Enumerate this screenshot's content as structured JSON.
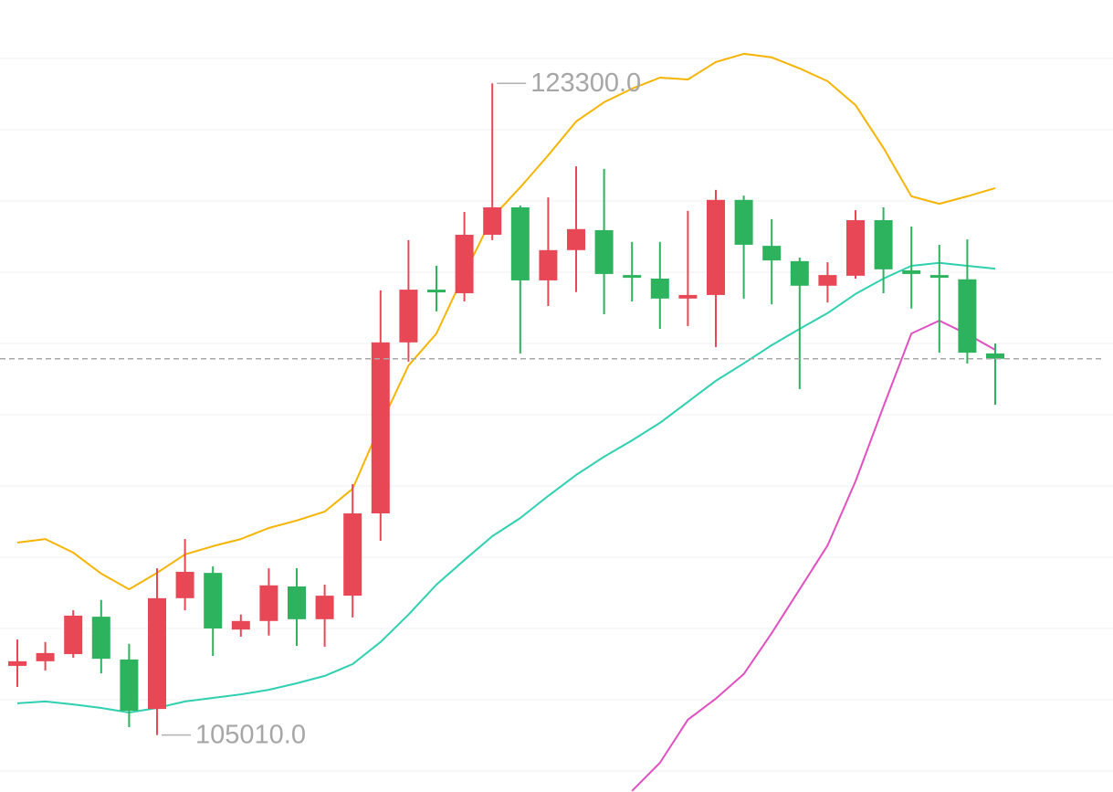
{
  "chart_data": {
    "type": "candlestick",
    "categories": [
      null,
      null,
      null,
      null,
      null,
      null,
      null,
      null,
      null,
      null,
      null,
      null,
      null,
      null,
      null,
      null,
      null,
      null,
      null,
      null,
      null,
      null,
      null,
      null,
      null,
      null,
      null,
      null,
      null,
      null,
      null,
      null,
      null,
      null,
      null,
      null
    ],
    "open": [
      106950,
      107080,
      107280,
      108330,
      107130,
      105740,
      108850,
      109560,
      107970,
      108210,
      109180,
      108260,
      108920,
      111230,
      116030,
      117510,
      117410,
      119050,
      119820,
      117770,
      118620,
      119180,
      117920,
      117820,
      117260,
      117360,
      120030,
      118740,
      118310,
      117620,
      117900,
      119460,
      118050,
      117920,
      117800,
      115720
    ],
    "high": [
      107690,
      107620,
      108510,
      108800,
      107570,
      109690,
      110510,
      109740,
      108390,
      109690,
      109690,
      109230,
      112050,
      117490,
      118900,
      118180,
      119690,
      123300,
      119870,
      120100,
      120970,
      120900,
      118850,
      118850,
      119720,
      120310,
      120150,
      119490,
      118410,
      118280,
      119740,
      119820,
      119280,
      118770,
      118920,
      116000
    ],
    "low": [
      106360,
      106820,
      107180,
      106740,
      105230,
      105010,
      108510,
      107230,
      107770,
      107800,
      107510,
      107490,
      108310,
      110460,
      115490,
      116900,
      117180,
      118900,
      115720,
      117050,
      117440,
      116820,
      117180,
      116410,
      116490,
      115900,
      117260,
      117100,
      114720,
      117150,
      117820,
      117410,
      116980,
      115740,
      115440,
      114280
    ],
    "close": [
      107080,
      107310,
      108360,
      107150,
      105690,
      108850,
      109590,
      108000,
      108210,
      109210,
      108260,
      108920,
      111230,
      116030,
      117510,
      117440,
      119050,
      119820,
      117770,
      118620,
      119210,
      117950,
      117870,
      117260,
      117360,
      120030,
      118770,
      118330,
      117620,
      117920,
      119460,
      118080,
      117950,
      117850,
      115740,
      115570
    ],
    "up_color": "#e84855",
    "down_color": "#2db35d",
    "lines": [
      {
        "color": "#f5b400",
        "values": [
          110410,
          110510,
          110130,
          109540,
          109100,
          109560,
          110080,
          110310,
          110510,
          110820,
          111030,
          111280,
          111920,
          113720,
          115380,
          116280,
          117950,
          119540,
          120380,
          121280,
          122230,
          122770,
          123150,
          123460,
          123410,
          123900,
          124130,
          124030,
          123720,
          123360,
          122690,
          121490,
          120130,
          119920,
          120130,
          120360
        ]
      },
      {
        "color": "#2fd0b0",
        "values": [
          105900,
          105950,
          105870,
          105770,
          105640,
          105770,
          105950,
          106050,
          106150,
          106280,
          106460,
          106670,
          107000,
          107620,
          108390,
          109230,
          109920,
          110590,
          111100,
          111720,
          112310,
          112820,
          113280,
          113770,
          114360,
          114950,
          115440,
          115950,
          116410,
          116850,
          117390,
          117820,
          118180,
          118260,
          118180,
          118100
        ]
      },
      {
        "color": "#e050c0",
        "values": [
          null,
          null,
          null,
          null,
          null,
          null,
          null,
          null,
          null,
          null,
          null,
          null,
          null,
          null,
          null,
          null,
          null,
          null,
          null,
          null,
          null,
          null,
          103440,
          104230,
          105440,
          106030,
          106720,
          107870,
          109100,
          110330,
          112130,
          114230,
          116280,
          116640,
          116260,
          115820
        ]
      }
    ],
    "annotations": [
      {
        "value": 123300,
        "label": "123300.0"
      },
      {
        "value": 105010,
        "label": "105010.0"
      }
    ],
    "ylim": [
      103410,
      125640
    ],
    "yticks": [
      104000,
      106000,
      108000,
      110000,
      112000,
      114000,
      116000,
      118000,
      120000,
      122000,
      124000
    ],
    "grid": true,
    "last_price_line": true
  }
}
